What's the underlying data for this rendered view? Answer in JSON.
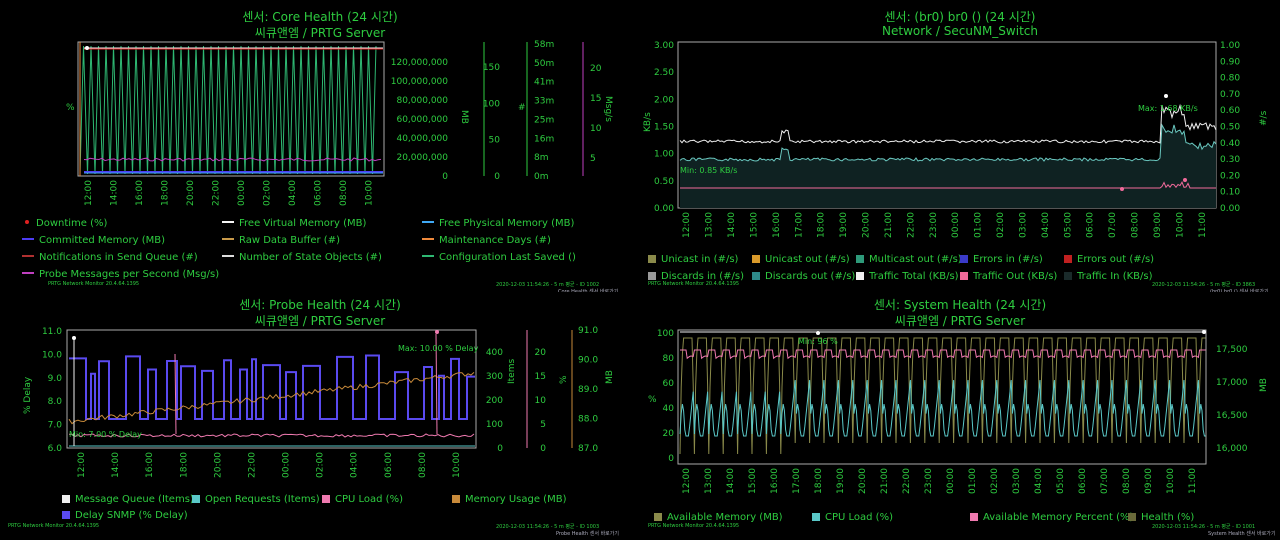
{
  "panels": {
    "core": {
      "title": "센서: Core Health (24 시간)",
      "subtitle": "씨큐앤엠 / PRTG Server",
      "footer_left": "PRTG Network Monitor 20.4.64.1395",
      "footer_right": "2020-12-03 11:54:26 - 5 m 평균 - ID 1002",
      "footer_right2": "Core Health 센서 바로가기",
      "legend": [
        {
          "label": "Downtime (%)",
          "color": "#e02020",
          "style": "dot"
        },
        {
          "label": "Free Virtual Memory (MB)",
          "color": "#f5f5f5",
          "style": "line"
        },
        {
          "label": "Free Physical Memory (MB)",
          "color": "#3fa9f5",
          "style": "line"
        },
        {
          "label": "Committed Memory (MB)",
          "color": "#4d3df5",
          "style": "line"
        },
        {
          "label": "Raw Data Buffer (#)",
          "color": "#c89a4a",
          "style": "line"
        },
        {
          "label": "Maintenance Days (#)",
          "color": "#f08a3c",
          "style": "line"
        },
        {
          "label": "Notifications in Send Queue (#)",
          "color": "#b03030",
          "style": "line"
        },
        {
          "label": "Number of State Objects (#)",
          "color": "#dddddd",
          "style": "line"
        },
        {
          "label": "Configuration Last Saved ()",
          "color": "#2eb872",
          "style": "line"
        },
        {
          "label": "Probe Messages per Second (Msg/s)",
          "color": "#c040c0",
          "style": "line"
        }
      ],
      "y_left_label": "%",
      "y_mb_ticks": [
        "120,000,000",
        "100,000,000",
        "80,000,000",
        "60,000,000",
        "40,000,000",
        "20,000,000",
        "0"
      ],
      "y_mb_label": "MB",
      "y_hash_ticks": [
        "150",
        "100",
        "50",
        "0"
      ],
      "y_hash_label": "#",
      "y_m_ticks": [
        "58m",
        "50m",
        "41m",
        "33m",
        "25m",
        "16m",
        "8m",
        "0m"
      ],
      "y_msg_ticks": [
        "20",
        "15",
        "10",
        "5"
      ],
      "y_msg_label": "Msg/s",
      "x_ticks": [
        "12:00",
        "14:00",
        "16:00",
        "18:00",
        "20:00",
        "22:00",
        "00:00",
        "02:00",
        "04:00",
        "06:00",
        "08:00",
        "10:00"
      ]
    },
    "network": {
      "title": "센서: (br0) br0 () (24 시간)",
      "subtitle": "Network / SecuNM_Switch",
      "footer_left": "PRTG Network Monitor 20.4.64.1395",
      "footer_right": "2020-12-03 11:54:26 - 5 m 평균 - ID 3863",
      "footer_right2": "(br0) br0 () 센서 바로가기",
      "y_left_label": "KB/s",
      "y_left_ticks": [
        "3.00",
        "2.50",
        "2.00",
        "1.50",
        "1.00",
        "0.50",
        "0.00"
      ],
      "y_right_label": "#/s",
      "y_right_ticks": [
        "1.00",
        "0.90",
        "0.80",
        "0.70",
        "0.60",
        "0.50",
        "0.40",
        "0.30",
        "0.20",
        "0.10",
        "0.00"
      ],
      "x_ticks": [
        "12:00",
        "13:00",
        "14:00",
        "15:00",
        "16:00",
        "17:00",
        "18:00",
        "19:00",
        "20:00",
        "21:00",
        "22:00",
        "23:00",
        "00:00",
        "01:00",
        "02:00",
        "03:00",
        "04:00",
        "05:00",
        "06:00",
        "07:00",
        "08:00",
        "09:00",
        "10:00",
        "11:00"
      ],
      "max_label": "Max: 1.68 KB/s",
      "min_label": "Min: 0.85 KB/s",
      "legend": [
        {
          "label": "Unicast in (#/s)",
          "color": "#8a8a4a"
        },
        {
          "label": "Unicast out (#/s)",
          "color": "#d99a2a"
        },
        {
          "label": "Multicast out (#/s)",
          "color": "#2e9a7a"
        },
        {
          "label": "Errors in (#/s)",
          "color": "#3a3ac8"
        },
        {
          "label": "Errors out (#/s)",
          "color": "#c02020"
        },
        {
          "label": "Discards in (#/s)",
          "color": "#9a9a9a"
        },
        {
          "label": "Discards out (#/s)",
          "color": "#2e8a8a"
        },
        {
          "label": "Traffic Total (KB/s)",
          "color": "#f0f0f0"
        },
        {
          "label": "Traffic Out (KB/s)",
          "color": "#f06a9a"
        },
        {
          "label": "Traffic In (KB/s)",
          "color": "#1a2a2a"
        }
      ]
    },
    "probe": {
      "title": "센서: Probe Health (24 시간)",
      "subtitle": "씨큐앤엠 / PRTG Server",
      "footer_left": "PRTG Network Monitor 20.4.64.1395",
      "footer_right": "2020-12-03 11:54:26 - 5 m 평균 - ID 1003",
      "footer_right2": "Probe Health 센서 바로가기",
      "y_left_label": "% Delay",
      "y_left_ticks": [
        "11.0",
        "10.0",
        "9.0",
        "8.0",
        "7.0",
        "6.0"
      ],
      "y_items_label": "Items",
      "y_items_ticks": [
        "400",
        "300",
        "200",
        "100",
        "0"
      ],
      "y_pct_label": "%",
      "y_pct_ticks": [
        "20",
        "15",
        "10",
        "5",
        "0"
      ],
      "y_mb_label": "MB",
      "y_mb_ticks": [
        "91.0",
        "90.0",
        "89.0",
        "88.0",
        "87.0"
      ],
      "x_ticks": [
        "12:00",
        "14:00",
        "16:00",
        "18:00",
        "20:00",
        "22:00",
        "00:00",
        "02:00",
        "04:00",
        "06:00",
        "08:00",
        "10:00"
      ],
      "max_label": "Max: 10.00 % Delay",
      "min_label": "Min: 7.00 % Delay",
      "legend": [
        {
          "label": "Message Queue (Items)",
          "color": "#f0f0f0"
        },
        {
          "label": "Open Requests (Items)",
          "color": "#5ac8c8"
        },
        {
          "label": "CPU Load (%)",
          "color": "#f07ab0"
        },
        {
          "label": "Memory Usage (MB)",
          "color": "#c88a3a"
        },
        {
          "label": "Delay SNMP (% Delay)",
          "color": "#5a4af0"
        }
      ]
    },
    "system": {
      "title": "센서: System Health (24 시간)",
      "subtitle": "씨큐앤엠 / PRTG Server",
      "footer_left": "PRTG Network Monitor 20.4.64.1395",
      "footer_right": "2020-12-03 11:54:26 - 5 m 평균 - ID 1001",
      "footer_right2": "System Health 센서 바로가기",
      "y_left_label": "%",
      "y_left_ticks": [
        "100",
        "80",
        "60",
        "40",
        "20",
        "0"
      ],
      "y_right_label": "MB",
      "y_right_ticks": [
        "17,500",
        "17,000",
        "16,500",
        "16,000"
      ],
      "x_ticks": [
        "12:00",
        "13:00",
        "14:00",
        "15:00",
        "16:00",
        "17:00",
        "18:00",
        "19:00",
        "20:00",
        "21:00",
        "22:00",
        "23:00",
        "00:00",
        "01:00",
        "02:00",
        "03:00",
        "04:00",
        "05:00",
        "06:00",
        "07:00",
        "08:00",
        "09:00",
        "10:00",
        "11:00"
      ],
      "min_label": "Min: 96 %",
      "legend": [
        {
          "label": "Available Memory (MB)",
          "color": "#8a8a4a"
        },
        {
          "label": "CPU Load (%)",
          "color": "#5ac8c8"
        },
        {
          "label": "Available Memory Percent (%)",
          "color": "#f07ab0"
        },
        {
          "label": "Health (%)",
          "color": "#6a6a3a"
        }
      ]
    }
  }
}
